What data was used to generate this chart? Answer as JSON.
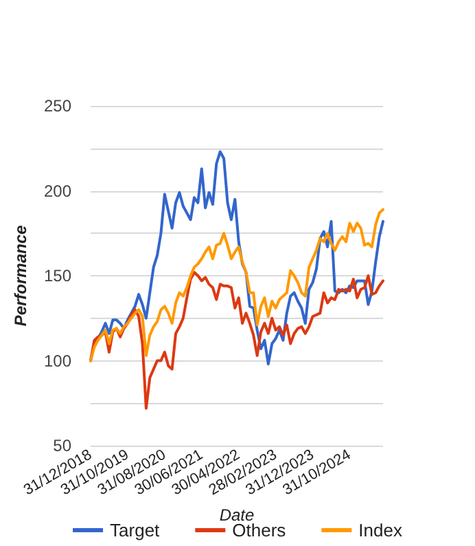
{
  "chart_data": {
    "type": "line",
    "xlabel": "Date",
    "ylabel": "Performance",
    "categories": [
      "31/12/2018",
      null,
      null,
      null,
      null,
      null,
      null,
      null,
      null,
      null,
      "31/10/2019",
      null,
      null,
      null,
      null,
      null,
      null,
      null,
      null,
      null,
      "31/08/2020",
      null,
      null,
      null,
      null,
      null,
      null,
      null,
      null,
      null,
      "30/06/2021",
      null,
      null,
      null,
      null,
      null,
      null,
      null,
      null,
      null,
      "30/04/2022",
      null,
      null,
      null,
      null,
      null,
      null,
      null,
      null,
      null,
      "28/02/2023",
      null,
      null,
      null,
      null,
      null,
      null,
      null,
      null,
      null,
      "31/12/2023",
      null,
      null,
      null,
      null,
      null,
      null,
      null,
      null,
      null,
      "31/10/2024",
      null,
      null,
      null,
      null,
      null,
      null,
      null,
      null,
      null
    ],
    "series": [
      {
        "name": "Target",
        "color": "#3366cc",
        "values": [
          100,
          110,
          113,
          117,
          122,
          116,
          124,
          124,
          122,
          119,
          124,
          128,
          132,
          139,
          133,
          125,
          140,
          155,
          162,
          175,
          198,
          188,
          178,
          193,
          199,
          191,
          187,
          183,
          196,
          193,
          213,
          190,
          199,
          192,
          216,
          223,
          219,
          193,
          183,
          195,
          170,
          157,
          152,
          132,
          131,
          118,
          107,
          112,
          98,
          110,
          113,
          118,
          112,
          128,
          138,
          140,
          135,
          131,
          122,
          142,
          146,
          154,
          172,
          176,
          167,
          182,
          141,
          140,
          142,
          140,
          144,
          143,
          147,
          147,
          147,
          133,
          141,
          158,
          173,
          182
        ]
      },
      {
        "name": "Others",
        "color": "#dc3912",
        "values": [
          100,
          112,
          114,
          115,
          117,
          105,
          117,
          119,
          114,
          119,
          122,
          127,
          130,
          126,
          110,
          72,
          90,
          95,
          100,
          100,
          105,
          97,
          95,
          116,
          120,
          125,
          137,
          148,
          152,
          150,
          147,
          149,
          145,
          143,
          136,
          145,
          144,
          144,
          143,
          131,
          137,
          122,
          128,
          122,
          115,
          103,
          117,
          122,
          116,
          125,
          118,
          120,
          115,
          121,
          110,
          116,
          119,
          120,
          116,
          120,
          126,
          127,
          128,
          140,
          134,
          137,
          136,
          142,
          141,
          142,
          141,
          148,
          137,
          142,
          143,
          150,
          139,
          140,
          144,
          147
        ]
      },
      {
        "name": "Index",
        "color": "#ff9900",
        "values": [
          100,
          108,
          112,
          115,
          118,
          110,
          118,
          119,
          116,
          120,
          122,
          125,
          128,
          130,
          126,
          103,
          115,
          120,
          123,
          130,
          132,
          128,
          122,
          134,
          140,
          138,
          143,
          150,
          155,
          157,
          160,
          164,
          167,
          160,
          168,
          169,
          175,
          168,
          160,
          164,
          167,
          158,
          152,
          140,
          140,
          121,
          132,
          137,
          126,
          135,
          131,
          136,
          138,
          140,
          153,
          150,
          146,
          140,
          138,
          155,
          160,
          165,
          172,
          170,
          175,
          169,
          165,
          170,
          173,
          170,
          181,
          176,
          181,
          178,
          168,
          169,
          167,
          180,
          187,
          189
        ]
      }
    ],
    "ylim": [
      50,
      250
    ],
    "yticks": [
      50,
      {
        "value": 75,
        "label": null
      },
      100,
      {
        "value": 125,
        "label": null
      },
      150,
      {
        "value": 175,
        "label": null
      },
      200,
      {
        "value": 225,
        "label": null
      },
      250
    ],
    "grid": "y",
    "legend": "bottom",
    "marker": "none",
    "line_style": "solid"
  }
}
